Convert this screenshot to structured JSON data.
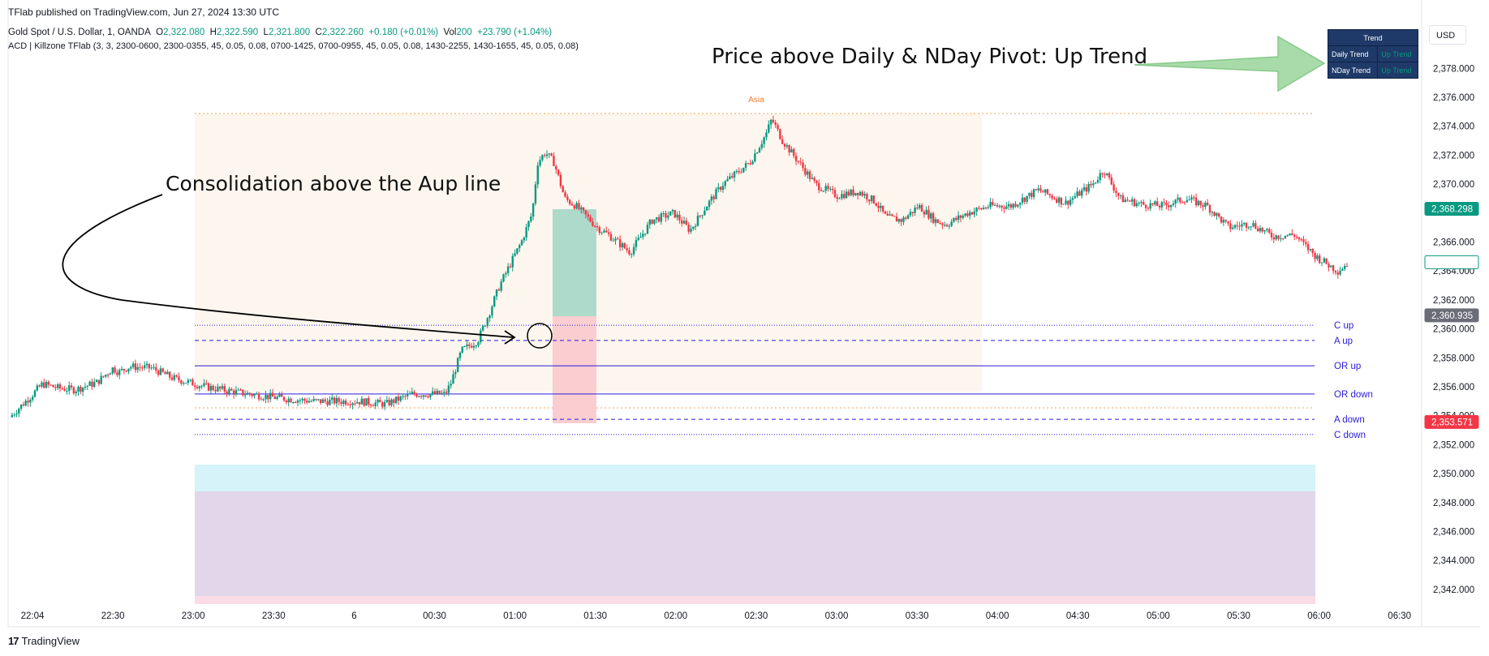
{
  "header": {
    "published": "TFlab published on TradingView.com, Jun 27, 2024 13:30 UTC",
    "symbol": "Gold Spot / U.S. Dollar, 1, OANDA",
    "o_label": "O",
    "o_value": "2,322.080",
    "h_label": "H",
    "h_value": "2,322.590",
    "l_label": "L",
    "l_value": "2,321.800",
    "c_label": "C",
    "c_value": "2,322.260",
    "change": "+0.180 (+0.01%)",
    "vol_label": "Vol",
    "vol_value": "200",
    "vol_change": "+23.790 (+1.04%)",
    "indicator": "ACD | Killzone TFlab (3, 3, 2300-0600, 2300-0355, 45, 0.05, 0.08, 0700-1425, 0700-0955, 45, 0.05, 0.08, 1430-2255, 1430-1655, 45, 0.05, 0.08)"
  },
  "currency": "USD",
  "trend_table": {
    "title": "Trend",
    "rows": [
      {
        "label": "Daily Trend",
        "value": "Up Trend"
      },
      {
        "label": "NDay Trend",
        "value": "Up Trend"
      }
    ]
  },
  "annotations": {
    "consolidation": "Consolidation above the Aup line",
    "pivot": "Price above Daily & NDay Pivot: Up Trend"
  },
  "session_label": "Asia",
  "footer": {
    "logo": "TradingView",
    "logo_mark": "17"
  },
  "colors": {
    "up": "#089981",
    "down": "#f23645",
    "level": "#2a1bd9",
    "session_fill": "#fdf6ee",
    "session_border": "#f2a057",
    "long_fill": "#a5d7c6",
    "short_fill": "#f9c9cc",
    "zone_cyan": "#d5f3f8",
    "zone_purple": "#e2d6ea",
    "zone_pink": "#fadce6",
    "arrow_fill": "#9fd8a0"
  },
  "chart_data": {
    "type": "candlestick",
    "x_ticks": [
      "22:04",
      "22:30",
      "23:00",
      "23:30",
      "6",
      "00:30",
      "01:00",
      "01:30",
      "02:00",
      "02:30",
      "03:00",
      "03:30",
      "04:00",
      "04:30",
      "05:00",
      "05:30",
      "06:00",
      "06:30"
    ],
    "y_ticks": [
      "2,378.000",
      "2,376.000",
      "2,374.000",
      "2,372.000",
      "2,370.000",
      "2,366.000",
      "2,364.000",
      "2,362.000",
      "2,360.000",
      "2,358.000",
      "2,356.000",
      "2,354.000",
      "2,352.000",
      "2,350.000",
      "2,348.000",
      "2,346.000",
      "2,344.000",
      "2,342.000"
    ],
    "ylim": [
      2341,
      2380
    ],
    "levels": [
      {
        "name": "C up",
        "value": 2360.25,
        "style": "dotted"
      },
      {
        "name": "A up",
        "value": 2359.2,
        "style": "dashed"
      },
      {
        "name": "OR up",
        "value": 2357.45,
        "style": "solid"
      },
      {
        "name": "OR down",
        "value": 2355.5,
        "style": "solid"
      },
      {
        "name": "A down",
        "value": 2353.75,
        "style": "dashed"
      },
      {
        "name": "C down",
        "value": 2352.7,
        "style": "dotted"
      }
    ],
    "price_tags": [
      {
        "value": 2368.298,
        "label": "2,368.298",
        "color": "#089981",
        "filled": true
      },
      {
        "value": 2364.605,
        "label": "2,364.605",
        "color": "#089981",
        "filled": false
      },
      {
        "value": 2360.935,
        "label": "2,360.935",
        "color": "#6a6d78",
        "filled": true
      },
      {
        "value": 2353.571,
        "label": "2,353.571",
        "color": "#f23645",
        "filled": true
      }
    ],
    "close_path": [
      [
        0,
        2353.9
      ],
      [
        0.2,
        2355.4
      ],
      [
        0.3,
        2356.2
      ],
      [
        0.45,
        2355.9
      ],
      [
        0.6,
        2355.8
      ],
      [
        0.8,
        2356.3
      ],
      [
        0.95,
        2357.3
      ],
      [
        1.0,
        2357.0
      ],
      [
        1.1,
        2357.4
      ],
      [
        1.3,
        2357.3
      ],
      [
        1.5,
        2356.6
      ],
      [
        1.8,
        2356.0
      ],
      [
        2.1,
        2355.6
      ],
      [
        2.5,
        2355.2
      ],
      [
        2.8,
        2355.0
      ],
      [
        3.2,
        2355.0
      ],
      [
        3.45,
        2354.8
      ],
      [
        3.7,
        2355.5
      ],
      [
        4.0,
        2355.5
      ],
      [
        4.05,
        2356.2
      ],
      [
        4.15,
        2358.5
      ],
      [
        4.3,
        2359.2
      ],
      [
        4.4,
        2361.0
      ],
      [
        4.5,
        2363.0
      ],
      [
        4.6,
        2364.5
      ],
      [
        4.7,
        2366.0
      ],
      [
        4.8,
        2368.0
      ],
      [
        4.85,
        2371.5
      ],
      [
        4.92,
        2372.2
      ],
      [
        5.0,
        2371.5
      ],
      [
        5.1,
        2369.0
      ],
      [
        5.2,
        2368.5
      ],
      [
        5.4,
        2367.0
      ],
      [
        5.5,
        2366.5
      ],
      [
        5.7,
        2365.3
      ],
      [
        5.9,
        2367.5
      ],
      [
        6.1,
        2368.0
      ],
      [
        6.25,
        2366.8
      ],
      [
        6.4,
        2368.5
      ],
      [
        6.55,
        2370.0
      ],
      [
        6.8,
        2371.5
      ],
      [
        6.95,
        2373.5
      ],
      [
        7.0,
        2374.5
      ],
      [
        7.1,
        2373.0
      ],
      [
        7.25,
        2371.5
      ],
      [
        7.4,
        2370.0
      ],
      [
        7.6,
        2369.2
      ],
      [
        7.8,
        2369.5
      ],
      [
        7.95,
        2368.8
      ],
      [
        8.05,
        2367.7
      ],
      [
        8.2,
        2367.5
      ],
      [
        8.35,
        2368.5
      ],
      [
        8.5,
        2367.5
      ],
      [
        8.6,
        2367.2
      ],
      [
        8.8,
        2368.0
      ],
      [
        9.0,
        2368.5
      ],
      [
        9.2,
        2368.5
      ],
      [
        9.45,
        2369.6
      ],
      [
        9.7,
        2368.7
      ],
      [
        9.95,
        2370.0
      ],
      [
        10.05,
        2371.0
      ],
      [
        10.2,
        2369.0
      ],
      [
        10.4,
        2368.6
      ],
      [
        10.6,
        2368.5
      ],
      [
        10.8,
        2369.0
      ],
      [
        11.0,
        2368.5
      ],
      [
        11.2,
        2367.0
      ],
      [
        11.4,
        2367.3
      ],
      [
        11.6,
        2366.4
      ],
      [
        11.8,
        2366.5
      ],
      [
        12.0,
        2365.0
      ],
      [
        12.2,
        2364.0
      ],
      [
        12.3,
        2364.6
      ]
    ]
  }
}
